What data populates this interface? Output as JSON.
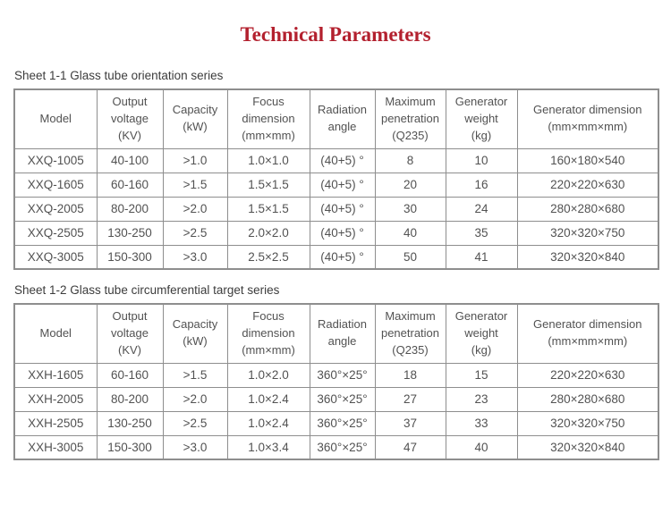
{
  "title": "Technical Parameters",
  "theme": {
    "title_color": "#b3202e",
    "border_color": "#8e8e8e",
    "text_color": "#525252",
    "caption_color": "#3c3c3c",
    "background": "#ffffff"
  },
  "tables": [
    {
      "caption": "Sheet 1-1 Glass tube orientation series",
      "headers": [
        "Model",
        "Output\nvoltage\n(KV)",
        "Capacity\n(kW)",
        "Focus\ndimension\n(mm×mm)",
        "Radiation\nangle",
        "Maximum\npenetration\n(Q235)",
        "Generator\nweight\n(kg)",
        "Generator dimension\n(mm×mm×mm)"
      ],
      "rows": [
        [
          "XXQ-1005",
          "40-100",
          ">1.0",
          "1.0×1.0",
          "(40+5) °",
          "8",
          "10",
          "160×180×540"
        ],
        [
          "XXQ-1605",
          "60-160",
          ">1.5",
          "1.5×1.5",
          "(40+5) °",
          "20",
          "16",
          "220×220×630"
        ],
        [
          "XXQ-2005",
          "80-200",
          ">2.0",
          "1.5×1.5",
          "(40+5) °",
          "30",
          "24",
          "280×280×680"
        ],
        [
          "XXQ-2505",
          "130-250",
          ">2.5",
          "2.0×2.0",
          "(40+5) °",
          "40",
          "35",
          "320×320×750"
        ],
        [
          "XXQ-3005",
          "150-300",
          ">3.0",
          "2.5×2.5",
          "(40+5) °",
          "50",
          "41",
          "320×320×840"
        ]
      ]
    },
    {
      "caption": "Sheet 1-2 Glass tube circumferential target series",
      "headers": [
        "Model",
        "Output\nvoltage\n(KV)",
        "Capacity\n(kW)",
        "Focus\ndimension\n(mm×mm)",
        "Radiation\nangle",
        "Maximum\npenetration\n(Q235)",
        "Generator\nweight\n(kg)",
        "Generator dimension\n(mm×mm×mm)"
      ],
      "rows": [
        [
          "XXH-1605",
          "60-160",
          ">1.5",
          "1.0×2.0",
          "360°×25°",
          "18",
          "15",
          "220×220×630"
        ],
        [
          "XXH-2005",
          "80-200",
          ">2.0",
          "1.0×2.4",
          "360°×25°",
          "27",
          "23",
          "280×280×680"
        ],
        [
          "XXH-2505",
          "130-250",
          ">2.5",
          "1.0×2.4",
          "360°×25°",
          "37",
          "33",
          "320×320×750"
        ],
        [
          "XXH-3005",
          "150-300",
          ">3.0",
          "1.0×3.4",
          "360°×25°",
          "47",
          "40",
          "320×320×840"
        ]
      ]
    }
  ]
}
